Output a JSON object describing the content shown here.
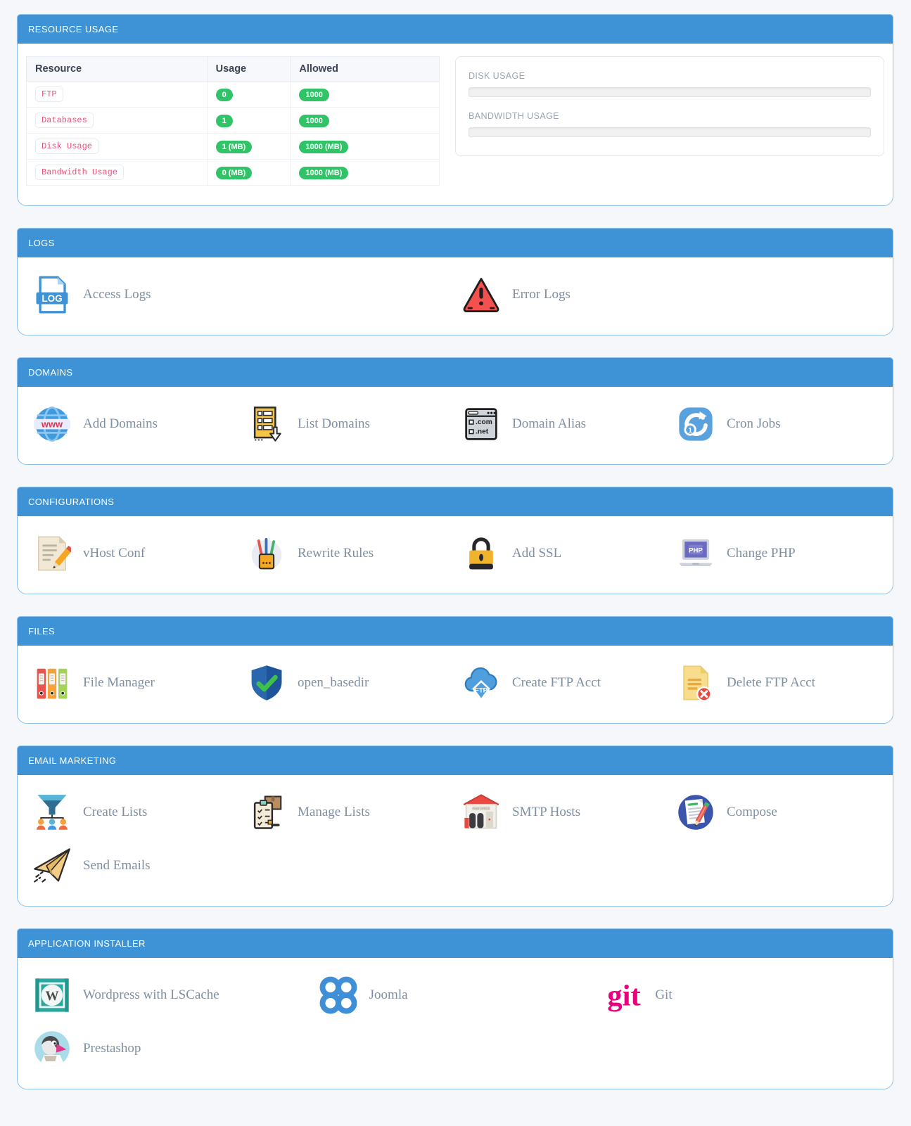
{
  "theme": {
    "header_blue": "#3e93d6",
    "panel_border": "#8fc0e9",
    "badge_green": "#31c368",
    "code_pink": "#e8537a",
    "label_gray": "#7e8fa3"
  },
  "resource_usage": {
    "title": "RESOURCE USAGE",
    "table": {
      "headers": [
        "Resource",
        "Usage",
        "Allowed"
      ],
      "rows": [
        {
          "resource": "FTP",
          "usage": "0",
          "allowed": "1000"
        },
        {
          "resource": "Databases",
          "usage": "1",
          "allowed": "1000"
        },
        {
          "resource": "Disk Usage",
          "usage": "1 (MB)",
          "allowed": "1000 (MB)"
        },
        {
          "resource": "Bandwidth Usage",
          "usage": "0 (MB)",
          "allowed": "1000 (MB)"
        }
      ]
    },
    "gauges": [
      {
        "label": "DISK USAGE",
        "percent": 0
      },
      {
        "label": "BANDWIDTH USAGE",
        "percent": 0
      }
    ]
  },
  "sections": [
    {
      "title": "LOGS",
      "cols": 2,
      "items": [
        {
          "label": "Access Logs",
          "icon": "log-file-icon"
        },
        {
          "label": "Error Logs",
          "icon": "error-warning-icon"
        }
      ]
    },
    {
      "title": "DOMAINS",
      "cols": 4,
      "items": [
        {
          "label": "Add Domains",
          "icon": "globe-www-icon"
        },
        {
          "label": "List Domains",
          "icon": "list-download-icon"
        },
        {
          "label": "Domain Alias",
          "icon": "browser-domains-icon"
        },
        {
          "label": "Cron Jobs",
          "icon": "refresh-cron-icon"
        }
      ]
    },
    {
      "title": "CONFIGURATIONS",
      "cols": 4,
      "items": [
        {
          "label": "vHost Conf",
          "icon": "document-pencil-icon"
        },
        {
          "label": "Rewrite Rules",
          "icon": "pen-cup-icon"
        },
        {
          "label": "Add SSL",
          "icon": "padlock-icon"
        },
        {
          "label": "Change PHP",
          "icon": "laptop-php-icon"
        }
      ]
    },
    {
      "title": "FILES",
      "cols": 4,
      "items": [
        {
          "label": "File Manager",
          "icon": "binders-icon"
        },
        {
          "label": "open_basedir",
          "icon": "shield-check-icon"
        },
        {
          "label": "Create FTP Acct",
          "icon": "cloud-ftp-icon"
        },
        {
          "label": "Delete FTP Acct",
          "icon": "document-delete-icon"
        }
      ]
    },
    {
      "title": "EMAIL MARKETING",
      "cols": 4,
      "items": [
        {
          "label": "Create Lists",
          "icon": "funnel-people-icon"
        },
        {
          "label": "Manage Lists",
          "icon": "clipboard-box-icon"
        },
        {
          "label": "SMTP Hosts",
          "icon": "post-office-icon"
        },
        {
          "label": "Compose",
          "icon": "compose-pen-icon"
        },
        {
          "label": "Send Emails",
          "icon": "paper-plane-icon"
        }
      ]
    },
    {
      "title": "APPLICATION INSTALLER",
      "cols": 3,
      "items": [
        {
          "label": "Wordpress with LSCache",
          "icon": "wordpress-logo-icon"
        },
        {
          "label": "Joomla",
          "icon": "joomla-logo-icon"
        },
        {
          "label": "Git",
          "icon": "git-logo-icon"
        },
        {
          "label": "Prestashop",
          "icon": "prestashop-logo-icon"
        }
      ]
    }
  ]
}
